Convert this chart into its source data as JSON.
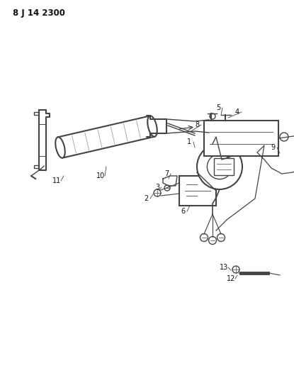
{
  "title_code": "8 J 14 2300",
  "bg_color": "#ffffff",
  "line_color": "#444444",
  "label_color": "#111111",
  "fig_width": 4.15,
  "fig_height": 5.33,
  "dpi": 100
}
